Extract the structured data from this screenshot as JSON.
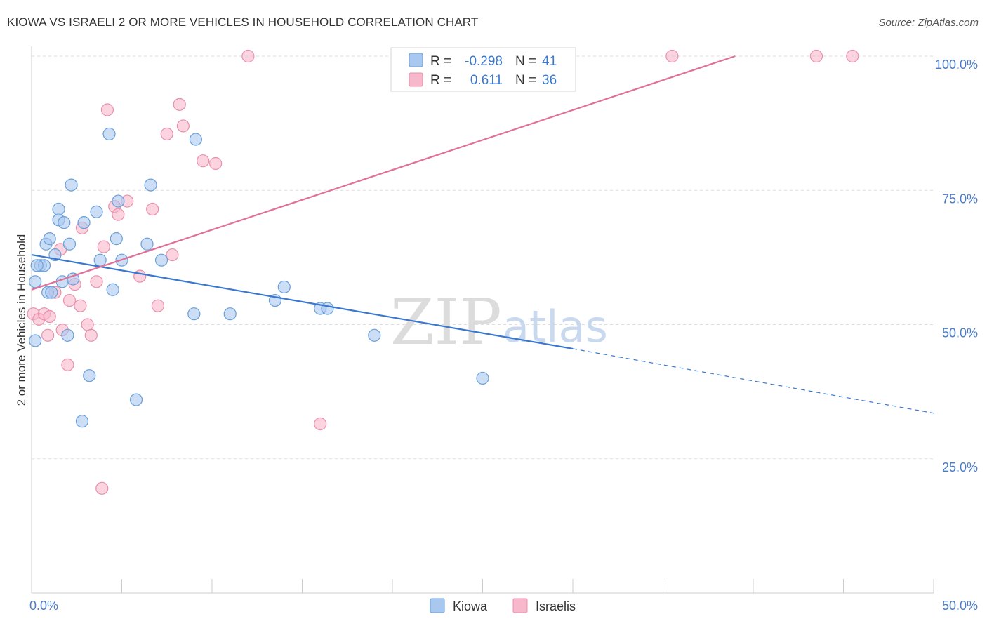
{
  "title": "KIOWA VS ISRAELI 2 OR MORE VEHICLES IN HOUSEHOLD CORRELATION CHART",
  "source": "Source: ZipAtlas.com",
  "watermark": {
    "zip": "ZIP",
    "atlas": "atlas"
  },
  "colors": {
    "kiowa_fill": "#a8c8f0",
    "kiowa_stroke": "#6a9fd8",
    "kiowa_line": "#3a78d0",
    "israelis_fill": "#f8b8cc",
    "israelis_stroke": "#e890ad",
    "israelis_line": "#e07098",
    "value_blue": "#3a78d0",
    "grid": "#dddddd"
  },
  "legend": {
    "kiowa": {
      "r_label": "R =",
      "r_value": "-0.298",
      "n_label": "N =",
      "n_value": "41"
    },
    "israelis": {
      "r_label": "R =",
      "r_value": "0.611",
      "n_label": "N =",
      "n_value": "36"
    }
  },
  "chart_data": {
    "type": "scatter",
    "title": "KIOWA VS ISRAELI 2 OR MORE VEHICLES IN HOUSEHOLD CORRELATION CHART",
    "xlabel": "",
    "ylabel": "2 or more Vehicles in Household",
    "xlim": [
      0,
      50
    ],
    "ylim": [
      0,
      100
    ],
    "x_tick_labels": [
      "0.0%",
      "50.0%"
    ],
    "y_tick_labels": [
      "25.0%",
      "50.0%",
      "75.0%",
      "100.0%"
    ],
    "y_ticks": [
      25,
      50,
      75,
      100
    ],
    "legend_position": "top-center",
    "series": [
      {
        "name": "Kiowa",
        "r": -0.298,
        "n": 41,
        "trend": {
          "x0": 0,
          "y0": 63.0,
          "x1": 30.0,
          "y1": 45.5,
          "dash_x1": 50.0,
          "dash_y1": 33.5
        },
        "points": [
          [
            0.2,
            47.0
          ],
          [
            0.2,
            58.0
          ],
          [
            0.5,
            61.0
          ],
          [
            0.7,
            61.0
          ],
          [
            0.8,
            65.0
          ],
          [
            0.9,
            56.0
          ],
          [
            1.0,
            66.0
          ],
          [
            1.1,
            56.0
          ],
          [
            1.3,
            63.0
          ],
          [
            1.5,
            69.5
          ],
          [
            1.5,
            71.5
          ],
          [
            1.7,
            58.0
          ],
          [
            1.8,
            69.0
          ],
          [
            2.0,
            48.0
          ],
          [
            2.1,
            65.0
          ],
          [
            2.2,
            76.0
          ],
          [
            2.3,
            58.5
          ],
          [
            2.8,
            32.0
          ],
          [
            2.9,
            69.0
          ],
          [
            3.2,
            40.5
          ],
          [
            3.6,
            71.0
          ],
          [
            3.8,
            62.0
          ],
          [
            4.3,
            85.5
          ],
          [
            4.5,
            56.5
          ],
          [
            4.7,
            66.0
          ],
          [
            4.8,
            73.0
          ],
          [
            5.0,
            62.0
          ],
          [
            5.8,
            36.0
          ],
          [
            6.4,
            65.0
          ],
          [
            6.6,
            76.0
          ],
          [
            7.2,
            62.0
          ],
          [
            9.0,
            52.0
          ],
          [
            9.1,
            84.5
          ],
          [
            11.0,
            52.0
          ],
          [
            13.5,
            54.5
          ],
          [
            14.0,
            57.0
          ],
          [
            16.0,
            53.0
          ],
          [
            16.4,
            53.0
          ],
          [
            19.0,
            48.0
          ],
          [
            25.0,
            40.0
          ],
          [
            0.3,
            61.0
          ]
        ]
      },
      {
        "name": "Israelis",
        "r": 0.611,
        "n": 36,
        "trend": {
          "x0": 0,
          "y0": 56.5,
          "x1": 39.0,
          "y1": 100.0
        },
        "points": [
          [
            0.1,
            52.0
          ],
          [
            0.4,
            51.0
          ],
          [
            0.7,
            52.0
          ],
          [
            0.9,
            48.0
          ],
          [
            1.0,
            51.5
          ],
          [
            1.3,
            56.0
          ],
          [
            1.6,
            64.0
          ],
          [
            1.7,
            49.0
          ],
          [
            2.0,
            42.5
          ],
          [
            2.1,
            54.5
          ],
          [
            2.4,
            57.5
          ],
          [
            2.7,
            53.5
          ],
          [
            2.8,
            68.0
          ],
          [
            3.1,
            50.0
          ],
          [
            3.3,
            48.0
          ],
          [
            3.6,
            58.0
          ],
          [
            3.9,
            19.5
          ],
          [
            4.0,
            64.5
          ],
          [
            4.2,
            90.0
          ],
          [
            4.6,
            72.0
          ],
          [
            4.8,
            70.5
          ],
          [
            5.3,
            73.0
          ],
          [
            6.0,
            59.0
          ],
          [
            6.7,
            71.5
          ],
          [
            7.0,
            53.5
          ],
          [
            7.5,
            85.5
          ],
          [
            7.8,
            63.0
          ],
          [
            8.2,
            91.0
          ],
          [
            8.4,
            87.0
          ],
          [
            9.5,
            80.5
          ],
          [
            10.2,
            80.0
          ],
          [
            12.0,
            100.0
          ],
          [
            16.0,
            31.5
          ],
          [
            35.5,
            100.0
          ],
          [
            43.5,
            100.0
          ],
          [
            45.5,
            100.0
          ]
        ]
      }
    ]
  },
  "bottom_legend": [
    {
      "key": "kiowa",
      "label": "Kiowa"
    },
    {
      "key": "israelis",
      "label": "Israelis"
    }
  ]
}
